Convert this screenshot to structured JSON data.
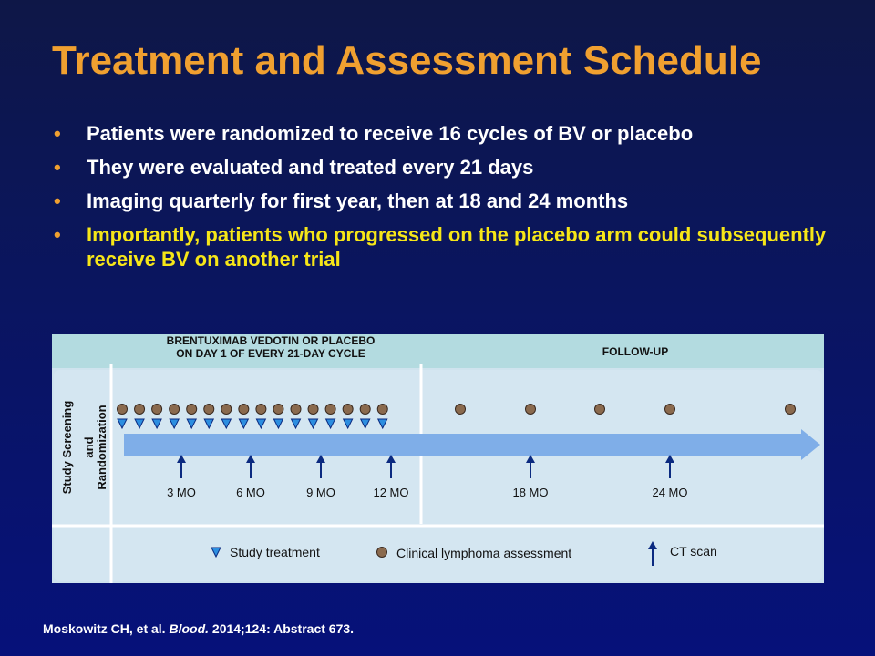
{
  "title": "Treatment and Assessment Schedule",
  "bullets": [
    {
      "text": "Patients were randomized to receive 16 cycles of BV or placebo",
      "highlight": false
    },
    {
      "text": "They were evaluated and treated every 21 days",
      "highlight": false
    },
    {
      "text": "Imaging quarterly for first year, then at 18 and 24 months",
      "highlight": false
    },
    {
      "text": "Importantly, patients who progressed on the placebo arm could subsequently receive BV on another trial",
      "highlight": true
    }
  ],
  "bullet_marker": "•",
  "diagram": {
    "header_treatment_line1": "BRENTUXIMAB VEDOTIN OR PLACEBO",
    "header_treatment_line2": "ON DAY 1 OF EVERY 21-DAY CYCLE",
    "header_followup": "FOLLOW-UP",
    "side_label_line1": "Study Screening",
    "side_label_line2": "and",
    "side_label_line3": "Randomization",
    "treatment_cycles": 16,
    "followup_assessments": 5,
    "ct_scans": [
      "3 MO",
      "6 MO",
      "9 MO",
      "12 MO",
      "18 MO",
      "24 MO"
    ],
    "legend": {
      "study_treatment": "Study treatment",
      "clinical_assessment": "Clinical lymphoma assessment",
      "ct_scan": "CT scan"
    },
    "colors": {
      "arrow": "#7faee8",
      "triangle_fill": "#2c8ee0",
      "triangle_stroke": "#0b2a80",
      "dot_fill": "#8a6a4e",
      "dot_stroke": "#3a2a20",
      "ct_arrow": "#0b2a80"
    }
  },
  "citation": {
    "authors": "Moskowitz CH, et al.",
    "journal": "Blood.",
    "details": "2014;124: Abstract 673."
  }
}
